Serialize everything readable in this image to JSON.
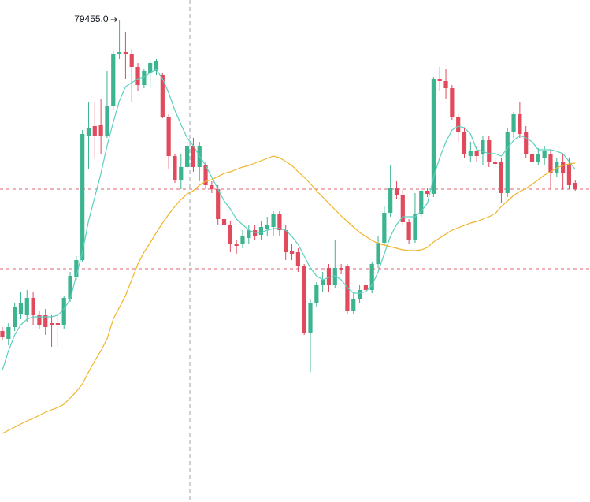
{
  "chart_data": {
    "type": "candlestick",
    "up_color": "#3cb48f",
    "down_color": "#e14a5c",
    "ylim": [
      73335,
      79705
    ],
    "open": [
      75505,
      75405,
      75555,
      75725,
      75705,
      75925,
      75705,
      75705,
      75605,
      75605,
      75585,
      75905,
      76185,
      76405,
      77985,
      78105,
      78125,
      77985,
      78355,
      79025,
      79045,
      79025,
      78855,
      78625,
      78785,
      78805,
      78755,
      78225,
      77725,
      77425,
      77585,
      77855,
      77585,
      77605,
      77355,
      77305,
      76925,
      76855,
      76605,
      76605,
      76685,
      76785,
      76725,
      76805,
      76825,
      76985,
      76785,
      76525,
      76505,
      76325,
      75485,
      75855,
      76085,
      76305,
      76085,
      76305,
      76325,
      75755,
      75905,
      76085,
      76025,
      76355,
      76625,
      77005,
      77325,
      77225,
      76885,
      76655,
      76985,
      77285,
      77245,
      78705,
      78675,
      78585,
      78225,
      78025,
      77725,
      77785,
      77755,
      77925,
      77655,
      77655,
      77255,
      78025,
      78255,
      78025,
      77755,
      77655,
      77705,
      77755,
      77505,
      77655,
      77625,
      77385
    ],
    "high": [
      75555,
      75605,
      75855,
      76005,
      76025,
      76005,
      75755,
      75785,
      75705,
      75685,
      75955,
      76255,
      76455,
      78055,
      78405,
      78405,
      78455,
      78805,
      79055,
      79455,
      79305,
      79085,
      78905,
      78825,
      78925,
      78955,
      78785,
      78255,
      77755,
      77755,
      77905,
      77955,
      77905,
      77655,
      77405,
      77355,
      77005,
      76905,
      76655,
      76785,
      76855,
      76855,
      76905,
      76955,
      77025,
      77025,
      76855,
      76605,
      76555,
      76355,
      75905,
      76125,
      76255,
      76355,
      76655,
      76355,
      76355,
      75985,
      76085,
      76125,
      76385,
      76705,
      77085,
      77605,
      77405,
      77305,
      76925,
      77255,
      77325,
      77325,
      78725,
      78855,
      78825,
      78625,
      78255,
      78085,
      77905,
      77855,
      77985,
      77985,
      77705,
      77705,
      78085,
      78285,
      78405,
      78105,
      77825,
      77825,
      77855,
      77805,
      77705,
      77755,
      77705,
      77425
    ],
    "low": [
      75385,
      75325,
      75505,
      75655,
      75625,
      75585,
      75525,
      75455,
      75305,
      75305,
      75525,
      75875,
      76155,
      76375,
      77555,
      77705,
      77755,
      77955,
      78305,
      78955,
      78705,
      78405,
      78555,
      78585,
      78585,
      78755,
      78205,
      77555,
      77385,
      77305,
      77555,
      77525,
      77405,
      77305,
      77255,
      76855,
      76805,
      76505,
      76485,
      76555,
      76605,
      76655,
      76655,
      76705,
      76705,
      76705,
      76405,
      76405,
      76255,
      75455,
      74985,
      75805,
      76005,
      76005,
      76055,
      76225,
      75725,
      75725,
      75855,
      75985,
      75985,
      76305,
      76585,
      76955,
      77185,
      76855,
      76605,
      76625,
      76955,
      77205,
      77205,
      78555,
      78455,
      78185,
      77905,
      77705,
      77655,
      77655,
      77605,
      77585,
      77585,
      77125,
      77205,
      77955,
      77955,
      77705,
      77605,
      77605,
      77605,
      77305,
      77455,
      77305,
      77305,
      77285
    ],
    "close": [
      75425,
      75555,
      75805,
      75855,
      75925,
      75705,
      75585,
      75555,
      75585,
      75585,
      75925,
      76205,
      76405,
      78005,
      78085,
      77985,
      77985,
      78355,
      79025,
      79045,
      79025,
      78855,
      78625,
      78805,
      78905,
      78925,
      78225,
      77725,
      77425,
      77585,
      77855,
      77585,
      77855,
      77355,
      77305,
      76925,
      76855,
      76605,
      76585,
      76705,
      76785,
      76705,
      76825,
      76855,
      76985,
      76785,
      76505,
      76485,
      76325,
      75485,
      75855,
      76085,
      76155,
      76085,
      76305,
      76285,
      75755,
      75905,
      76025,
      76025,
      76355,
      76625,
      77005,
      77325,
      77225,
      76885,
      76655,
      76985,
      77285,
      77245,
      78705,
      78675,
      78585,
      78225,
      78025,
      77755,
      77785,
      77725,
      77925,
      77655,
      77625,
      77255,
      78025,
      78255,
      78005,
      77755,
      77655,
      77755,
      77785,
      77505,
      77655,
      77505,
      77355,
      77305
    ],
    "series": [
      {
        "color": "#5ccfbf",
        "values": [
          75005,
          75255,
          75455,
          75585,
          75655,
          75685,
          75685,
          75685,
          75685,
          75705,
          75785,
          75905,
          76205,
          76505,
          76905,
          77205,
          77505,
          77855,
          78155,
          78425,
          78605,
          78655,
          78705,
          78725,
          78785,
          78825,
          78705,
          78525,
          78305,
          78125,
          77955,
          77855,
          77725,
          77605,
          77455,
          77305,
          77155,
          77055,
          76925,
          76855,
          76785,
          76755,
          76755,
          76785,
          76805,
          76805,
          76785,
          76705,
          76605,
          76455,
          76305,
          76205,
          76155,
          76185,
          76205,
          76155,
          76055,
          75985,
          75985,
          76005,
          76085,
          76255,
          76485,
          76705,
          76855,
          76955,
          76955,
          76955,
          77025,
          77125,
          77455,
          77705,
          77905,
          78055,
          78105,
          78085,
          78005,
          77805,
          77785,
          77755,
          77755,
          77725,
          77825,
          77925,
          77985,
          77955,
          77905,
          77805,
          77805,
          77805,
          77785,
          77755,
          77655,
          77555
        ]
      },
      {
        "color": "#f0b429",
        "values": [
          74205,
          74245,
          74285,
          74325,
          74365,
          74395,
          74435,
          74475,
          74505,
          74535,
          74575,
          74655,
          74735,
          74835,
          74985,
          75125,
          75255,
          75405,
          75655,
          75805,
          75955,
          76155,
          76355,
          76505,
          76625,
          76755,
          76875,
          76985,
          77085,
          77175,
          77245,
          77285,
          77355,
          77405,
          77425,
          77465,
          77505,
          77525,
          77555,
          77585,
          77605,
          77635,
          77665,
          77695,
          77725,
          77705,
          77655,
          77605,
          77525,
          77455,
          77375,
          77285,
          77205,
          77125,
          77045,
          76965,
          76895,
          76825,
          76755,
          76705,
          76655,
          76615,
          76595,
          76575,
          76555,
          76535,
          76525,
          76525,
          76535,
          76565,
          76635,
          76685,
          76735,
          76785,
          76815,
          76845,
          76875,
          76895,
          76925,
          76955,
          76995,
          77085,
          77155,
          77225,
          77275,
          77315,
          77365,
          77425,
          77485,
          77525,
          77575,
          77605,
          77625,
          77635
        ]
      }
    ],
    "hlines": [
      77305,
      76295
    ],
    "hline_color": "#e06070",
    "annotations": [
      {
        "value": 79455,
        "label": "79455.0"
      }
    ]
  }
}
